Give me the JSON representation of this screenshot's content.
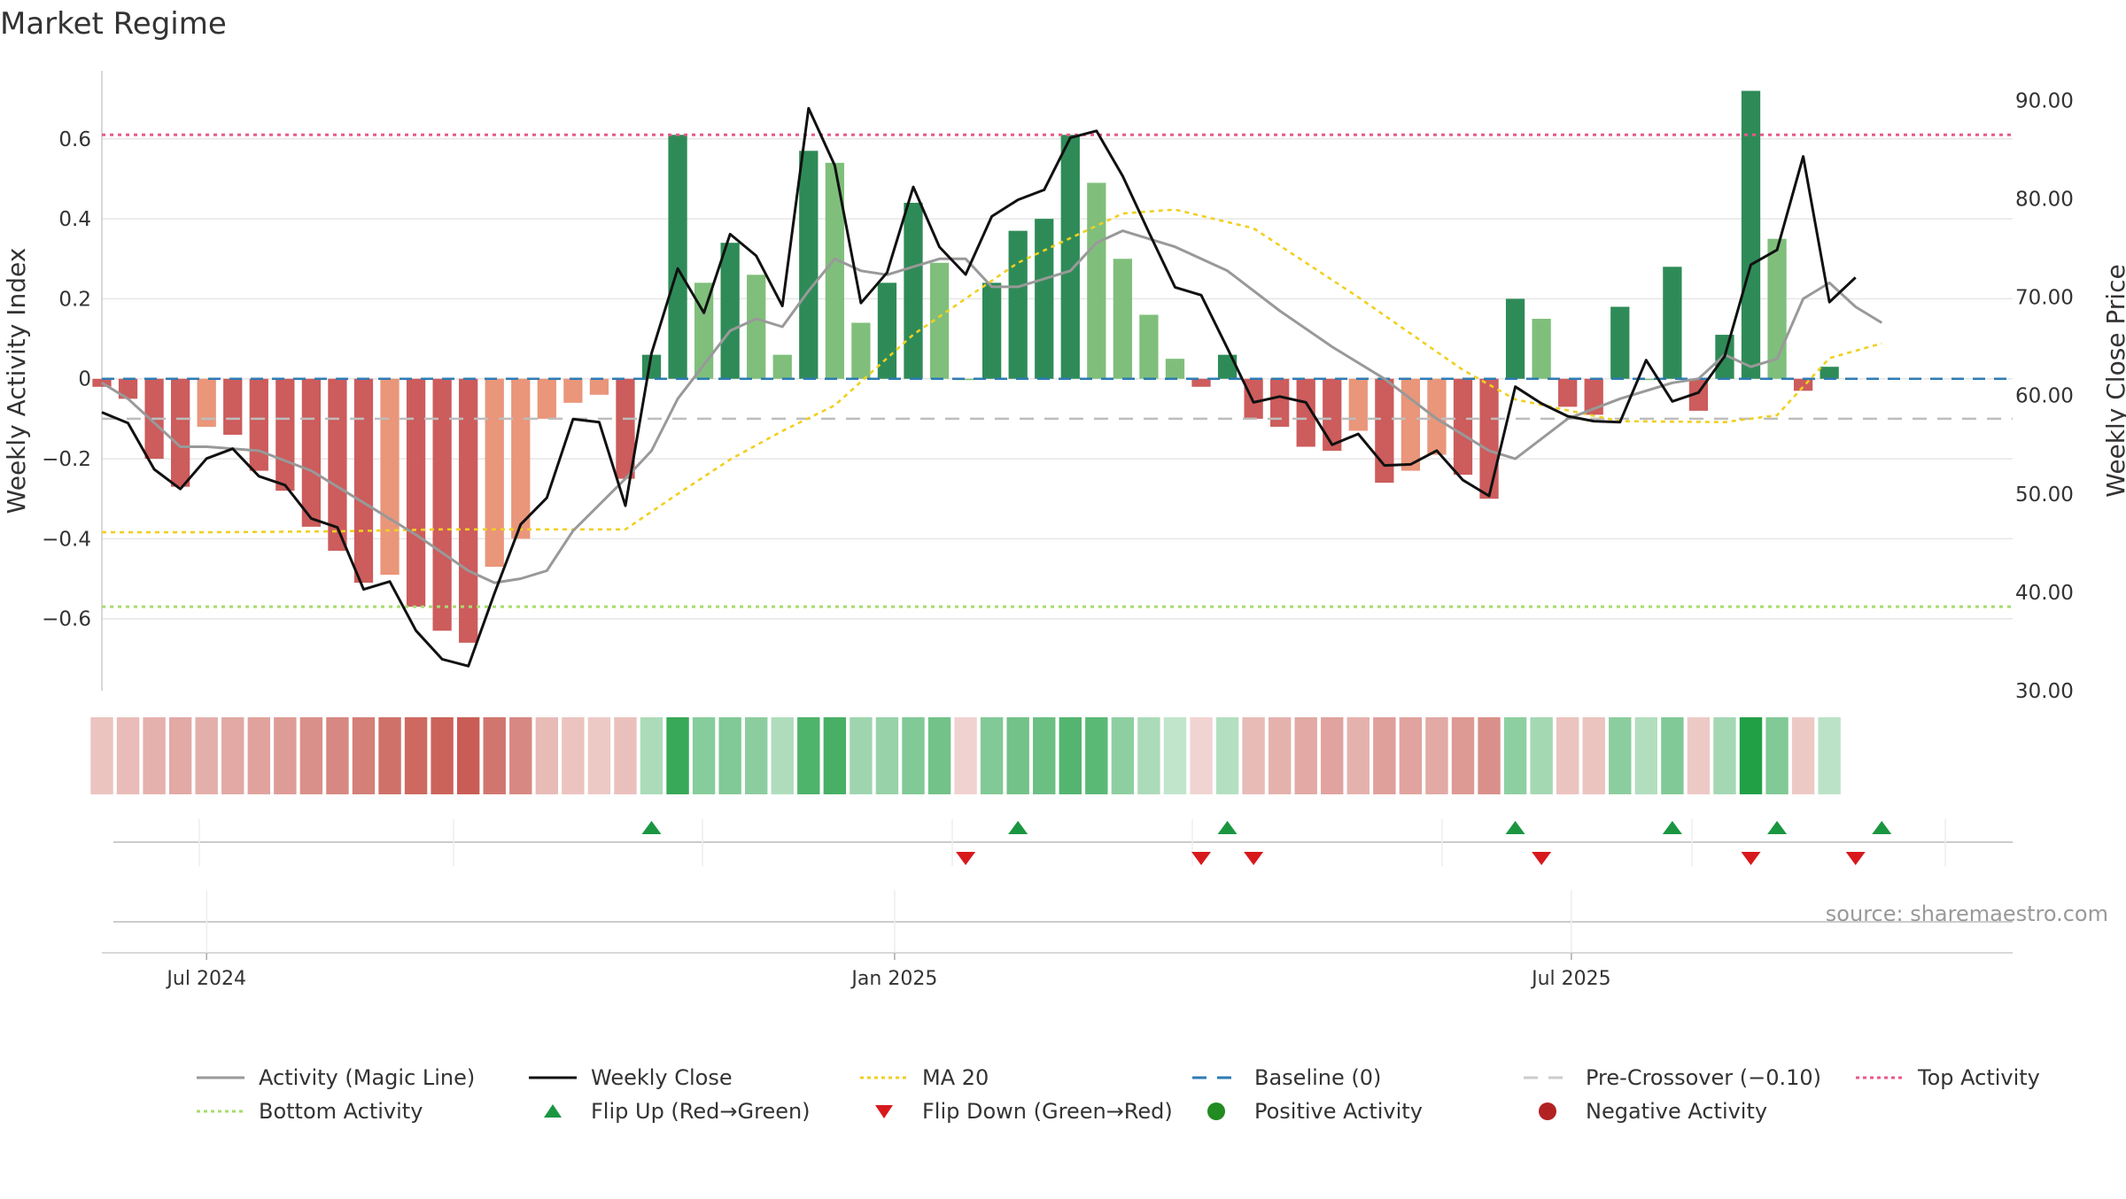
{
  "chart_data": {
    "type": "bar",
    "title": "Market Regime",
    "ylabel_left": "Weekly Activity Index",
    "ylabel_right": "Weekly Close Price",
    "ylim_left": [
      -0.78,
      0.77
    ],
    "ylim_right": [
      30,
      93
    ],
    "yticks_left": [
      -0.6,
      -0.4,
      -0.2,
      0,
      0.2,
      0.4,
      0.6
    ],
    "yticks_left_labels": [
      "−0.6",
      "−0.4",
      "−0.2",
      "0",
      "0.2",
      "0.4",
      "0.6"
    ],
    "yticks_right": [
      30,
      40,
      50,
      60,
      70,
      80,
      90
    ],
    "yticks_right_labels": [
      "30.00",
      "40.00",
      "50.00",
      "60.00",
      "70.00",
      "80.00",
      "90.00"
    ],
    "x_start": "2024-06-03",
    "x_end": "2025-10-27",
    "xticks": [
      {
        "date": "2024-07-01",
        "label": "Jul 2024"
      },
      {
        "date": "2025-01-01",
        "label": "Jan 2025"
      },
      {
        "date": "2025-07-01",
        "label": "Jul 2025"
      }
    ],
    "weeks": [
      "2024-06-03",
      "2024-06-10",
      "2024-06-17",
      "2024-06-24",
      "2024-07-01",
      "2024-07-08",
      "2024-07-15",
      "2024-07-22",
      "2024-07-29",
      "2024-08-05",
      "2024-08-12",
      "2024-08-19",
      "2024-08-26",
      "2024-09-02",
      "2024-09-09",
      "2024-09-16",
      "2024-09-23",
      "2024-09-30",
      "2024-10-07",
      "2024-10-14",
      "2024-10-21",
      "2024-10-28",
      "2024-11-04",
      "2024-11-11",
      "2024-11-18",
      "2024-11-25",
      "2024-12-02",
      "2024-12-09",
      "2024-12-16",
      "2024-12-23",
      "2024-12-30",
      "2025-01-06",
      "2025-01-13",
      "2025-01-20",
      "2025-01-27",
      "2025-02-03",
      "2025-02-10",
      "2025-02-17",
      "2025-02-24",
      "2025-03-03",
      "2025-03-10",
      "2025-03-17",
      "2025-03-24",
      "2025-03-31",
      "2025-04-07",
      "2025-04-14",
      "2025-04-21",
      "2025-04-28",
      "2025-05-05",
      "2025-05-12",
      "2025-05-19",
      "2025-05-26",
      "2025-06-02",
      "2025-06-09",
      "2025-06-16",
      "2025-06-23",
      "2025-06-30",
      "2025-07-07",
      "2025-07-14",
      "2025-07-21",
      "2025-07-28",
      "2025-08-04",
      "2025-08-11",
      "2025-08-18",
      "2025-08-25",
      "2025-09-01",
      "2025-09-08",
      "2025-09-15",
      "2025-09-22",
      "2025-09-29",
      "2025-10-06",
      "2025-10-13",
      "2025-10-20",
      "2025-10-27"
    ],
    "activity_bars": [
      -0.02,
      -0.05,
      -0.2,
      -0.27,
      -0.12,
      -0.14,
      -0.23,
      -0.28,
      -0.37,
      -0.43,
      -0.51,
      -0.49,
      -0.57,
      -0.63,
      -0.66,
      -0.47,
      -0.4,
      -0.1,
      -0.06,
      -0.04,
      -0.25,
      0.06,
      0.61,
      0.24,
      0.34,
      0.26,
      0.06,
      0.57,
      0.54,
      0.14,
      0.24,
      0.44,
      0.29,
      0.0,
      0.24,
      0.37,
      0.4,
      0.61,
      0.49,
      0.3,
      0.16,
      0.05,
      -0.02,
      0.06,
      -0.1,
      -0.12,
      -0.17,
      -0.18,
      -0.13,
      -0.26,
      -0.23,
      -0.19,
      -0.24,
      -0.3,
      0.2,
      0.15,
      -0.07,
      -0.09,
      0.18,
      0.0,
      0.28,
      -0.08,
      0.11,
      0.72,
      0.35,
      -0.03,
      0.03
    ],
    "activity_bar_dates": [
      "2024-06-03",
      "2024-06-10",
      "2024-06-17",
      "2024-06-24",
      "2024-07-01",
      "2024-07-08",
      "2024-07-15",
      "2024-07-22",
      "2024-07-29",
      "2024-08-05",
      "2024-08-12",
      "2024-08-19",
      "2024-08-26",
      "2024-09-02",
      "2024-09-09",
      "2024-09-16",
      "2024-09-23",
      "2024-09-30",
      "2024-10-07",
      "2024-10-14",
      "2024-10-21",
      "2024-10-28",
      "2024-11-04",
      "2024-11-11",
      "2024-11-18",
      "2024-11-25",
      "2024-12-02",
      "2024-12-09",
      "2024-12-16",
      "2024-12-23",
      "2024-12-30",
      "2025-01-06",
      "2025-01-13",
      "2025-01-20",
      "2025-01-27",
      "2025-02-03",
      "2025-02-10",
      "2025-02-17",
      "2025-02-24",
      "2025-03-03",
      "2025-03-10",
      "2025-03-17",
      "2025-03-24",
      "2025-03-31",
      "2025-04-07",
      "2025-04-14",
      "2025-04-21",
      "2025-04-28",
      "2025-05-05",
      "2025-05-12",
      "2025-05-19",
      "2025-05-26",
      "2025-06-02",
      "2025-06-09",
      "2025-06-16",
      "2025-06-23",
      "2025-06-30",
      "2025-07-07",
      "2025-07-14",
      "2025-07-21",
      "2025-07-28",
      "2025-08-04",
      "2025-08-11",
      "2025-08-18",
      "2025-08-25",
      "2025-09-01",
      "2025-09-08"
    ],
    "activity_line_dates": [
      "2024-06-03",
      "2024-06-10",
      "2024-06-24",
      "2024-07-01",
      "2024-07-15",
      "2024-07-29",
      "2024-08-12",
      "2024-08-26",
      "2024-09-09",
      "2024-09-16",
      "2024-09-23",
      "2024-09-30",
      "2024-10-07",
      "2024-10-21",
      "2024-10-28",
      "2024-11-04",
      "2024-11-18",
      "2024-11-25",
      "2024-12-02",
      "2024-12-09",
      "2024-12-16",
      "2024-12-23",
      "2024-12-30",
      "2025-01-13",
      "2025-01-20",
      "2025-01-27",
      "2025-02-03",
      "2025-02-17",
      "2025-02-24",
      "2025-03-03",
      "2025-03-17",
      "2025-03-31",
      "2025-04-14",
      "2025-04-28",
      "2025-05-12",
      "2025-05-26",
      "2025-06-09",
      "2025-06-16",
      "2025-06-30",
      "2025-07-14",
      "2025-07-28",
      "2025-08-04",
      "2025-08-11",
      "2025-08-18",
      "2025-08-25",
      "2025-09-01",
      "2025-09-08",
      "2025-09-15",
      "2025-09-22"
    ],
    "activity_line": [
      -0.01,
      -0.05,
      -0.17,
      -0.17,
      -0.18,
      -0.23,
      -0.31,
      -0.39,
      -0.48,
      -0.51,
      -0.5,
      -0.48,
      -0.38,
      -0.25,
      -0.18,
      -0.05,
      0.12,
      0.15,
      0.13,
      0.22,
      0.3,
      0.27,
      0.26,
      0.3,
      0.3,
      0.23,
      0.23,
      0.27,
      0.34,
      0.37,
      0.33,
      0.27,
      0.17,
      0.08,
      0.0,
      -0.1,
      -0.18,
      -0.2,
      -0.1,
      -0.05,
      -0.01,
      0.0,
      0.06,
      0.03,
      0.05,
      0.2,
      0.24,
      0.18,
      0.14
    ],
    "weekly_close_dates": [
      "2024-06-03",
      "2024-06-10",
      "2024-06-17",
      "2024-06-24",
      "2024-07-01",
      "2024-07-08",
      "2024-07-15",
      "2024-07-22",
      "2024-07-29",
      "2024-08-05",
      "2024-08-12",
      "2024-08-19",
      "2024-08-26",
      "2024-09-02",
      "2024-09-09",
      "2024-09-16",
      "2024-09-23",
      "2024-09-30",
      "2024-10-07",
      "2024-10-14",
      "2024-10-21",
      "2024-10-28",
      "2024-11-04",
      "2024-11-11",
      "2024-11-18",
      "2024-11-25",
      "2024-12-02",
      "2024-12-09",
      "2024-12-16",
      "2024-12-23",
      "2024-12-30",
      "2025-01-06",
      "2025-01-13",
      "2025-01-20",
      "2025-01-27",
      "2025-02-03",
      "2025-02-10",
      "2025-02-17",
      "2025-02-24",
      "2025-03-03",
      "2025-03-10",
      "2025-03-17",
      "2025-03-24",
      "2025-03-31",
      "2025-04-07",
      "2025-04-14",
      "2025-04-21",
      "2025-04-28",
      "2025-05-05",
      "2025-05-12",
      "2025-05-19",
      "2025-05-26",
      "2025-06-02",
      "2025-06-09",
      "2025-06-16",
      "2025-06-23",
      "2025-06-30",
      "2025-07-07",
      "2025-07-14",
      "2025-07-21",
      "2025-07-28",
      "2025-08-04",
      "2025-08-11",
      "2025-08-18",
      "2025-08-25",
      "2025-09-01",
      "2025-09-08",
      "2025-09-15",
      "2025-09-22",
      "2025-09-29",
      "2025-10-06",
      "2025-10-13",
      "2025-10-20",
      "2025-10-27"
    ],
    "weekly_close": [
      58.3,
      57.2,
      52.5,
      50.5,
      53.6,
      54.6,
      51.8,
      50.9,
      47.5,
      46.6,
      40.3,
      41.1,
      36.1,
      33.2,
      32.5,
      39.9,
      46.9,
      49.6,
      57.6,
      57.3,
      48.8,
      64.3,
      72.9,
      68.4,
      76.4,
      74.2,
      69.1,
      89.2,
      83.4,
      69.4,
      72.5,
      81.2,
      75.1,
      72.3,
      78.2,
      79.9,
      80.9,
      86.2,
      86.9,
      82.3,
      76.6,
      71.0,
      70.2,
      64.8,
      59.3,
      59.9,
      59.3,
      55.0,
      56.1,
      52.9,
      53.0,
      54.4,
      51.4,
      49.8,
      60.9,
      59.2,
      57.9,
      57.4,
      57.3,
      63.6,
      59.4,
      60.3,
      64.0,
      73.3,
      74.8,
      84.3,
      69.5,
      72.0,
      null,
      null,
      null,
      null,
      null,
      null
    ],
    "ma20_dates": [
      "2024-06-03",
      "2024-07-01",
      "2024-08-05",
      "2024-09-02",
      "2024-10-07",
      "2024-10-21",
      "2024-11-04",
      "2024-11-18",
      "2024-12-02",
      "2024-12-16",
      "2025-01-06",
      "2025-02-03",
      "2025-03-03",
      "2025-03-17",
      "2025-04-07",
      "2025-05-05",
      "2025-06-02",
      "2025-06-16",
      "2025-07-14",
      "2025-08-11",
      "2025-08-25",
      "2025-09-08",
      "2025-09-22"
    ],
    "ma20": [
      46.1,
      46.1,
      46.2,
      46.4,
      46.4,
      46.4,
      50.0,
      53.5,
      56.4,
      59.0,
      66.2,
      73.5,
      78.5,
      78.9,
      77.0,
      70.0,
      62.6,
      59.6,
      57.4,
      57.3,
      58.0,
      63.8,
      65.3
    ],
    "reference_lines": [
      {
        "name": "Baseline (0)",
        "value": 0,
        "color": "#2e7bb4"
      },
      {
        "name": "Pre-Crossover (−0.10)",
        "value": -0.1,
        "color": "#bdbdbd"
      },
      {
        "name": "Top Activity",
        "value": 0.61,
        "color": "#e8588a"
      },
      {
        "name": "Bottom Activity",
        "value": -0.57,
        "color": "#a6dc6e"
      }
    ],
    "flip_up_dates": [
      "2024-10-28",
      "2025-02-03",
      "2025-03-31",
      "2025-06-16",
      "2025-07-28",
      "2025-08-25",
      "2025-09-22"
    ],
    "flip_down_dates": [
      "2025-01-20",
      "2025-03-24",
      "2025-04-07",
      "2025-06-23",
      "2025-08-18",
      "2025-09-15"
    ],
    "heat_strip_dates": [
      "2024-06-03",
      "2024-06-10",
      "2024-06-17",
      "2024-06-24",
      "2024-07-01",
      "2024-07-08",
      "2024-07-15",
      "2024-07-22",
      "2024-07-29",
      "2024-08-05",
      "2024-08-12",
      "2024-08-19",
      "2024-08-26",
      "2024-09-02",
      "2024-09-09",
      "2024-09-16",
      "2024-09-23",
      "2024-09-30",
      "2024-10-07",
      "2024-10-14",
      "2024-10-21",
      "2024-10-28",
      "2024-11-04",
      "2024-11-11",
      "2024-11-18",
      "2024-11-25",
      "2024-12-02",
      "2024-12-09",
      "2024-12-16",
      "2024-12-23",
      "2024-12-30",
      "2025-01-06",
      "2025-01-13",
      "2025-01-20",
      "2025-01-27",
      "2025-02-03",
      "2025-02-10",
      "2025-02-17",
      "2025-02-24",
      "2025-03-03",
      "2025-03-10",
      "2025-03-17",
      "2025-03-24",
      "2025-03-31",
      "2025-04-07",
      "2025-04-14",
      "2025-04-21",
      "2025-04-28",
      "2025-05-05",
      "2025-05-12",
      "2025-05-19",
      "2025-05-26",
      "2025-06-02",
      "2025-06-09",
      "2025-06-16",
      "2025-06-23",
      "2025-06-30",
      "2025-07-07",
      "2025-07-14",
      "2025-07-21",
      "2025-07-28",
      "2025-08-04",
      "2025-08-11",
      "2025-08-18",
      "2025-08-25",
      "2025-09-01",
      "2025-09-08",
      "2025-09-15",
      "2025-09-22",
      "2025-09-29"
    ],
    "heat_strip": [
      -0.1,
      -0.12,
      -0.17,
      -0.2,
      -0.18,
      -0.2,
      -0.23,
      -0.25,
      -0.3,
      -0.33,
      -0.37,
      -0.42,
      -0.45,
      -0.48,
      -0.5,
      -0.4,
      -0.33,
      -0.13,
      -0.1,
      -0.08,
      -0.11,
      0.15,
      0.55,
      0.28,
      0.3,
      0.26,
      0.14,
      0.48,
      0.5,
      0.2,
      0.22,
      0.3,
      0.35,
      -0.04,
      0.3,
      0.35,
      0.38,
      0.46,
      0.43,
      0.25,
      0.15,
      0.08,
      -0.03,
      0.12,
      -0.13,
      -0.17,
      -0.2,
      -0.22,
      -0.17,
      -0.24,
      -0.22,
      -0.2,
      -0.26,
      -0.3,
      0.25,
      0.18,
      -0.1,
      -0.1,
      0.26,
      0.13,
      0.3,
      -0.08,
      0.18,
      0.65,
      0.3,
      -0.08,
      0.1,
      null,
      null,
      null
    ],
    "source": "source: sharemaestro.com",
    "colors": {
      "pos_strong": "#2e8b57",
      "pos_light": "#7fbf7b",
      "neg_strong": "#cd5c5c",
      "neg_light": "#e9967a",
      "activity_line": "#999999",
      "weekly_close": "#111111",
      "ma20": "#f0d020",
      "flip_up": "#1a9641",
      "flip_down": "#d7191c",
      "positive_dot": "#228b22",
      "negative_dot": "#b22222"
    },
    "legend": {
      "placement": "bottom",
      "items": [
        {
          "label": "Activity (Magic Line)",
          "marker": "line",
          "color": "#999999"
        },
        {
          "label": "Weekly Close",
          "marker": "line",
          "color": "#111111"
        },
        {
          "label": "MA 20",
          "marker": "dotted",
          "color": "#f0d020"
        },
        {
          "label": "Baseline (0)",
          "marker": "dashed",
          "color": "#2e7bb4"
        },
        {
          "label": "Pre-Crossover (−0.10)",
          "marker": "dashed",
          "color": "#cccccc"
        },
        {
          "label": "Top Activity",
          "marker": "dotted",
          "color": "#e8588a"
        },
        {
          "label": "Bottom Activity",
          "marker": "dotted",
          "color": "#a6dc6e"
        },
        {
          "label": "Flip Up (Red→Green)",
          "marker": "triangle-up",
          "color": "#1a9641"
        },
        {
          "label": "Flip Down (Green→Red)",
          "marker": "triangle-down",
          "color": "#d7191c"
        },
        {
          "label": "Positive Activity",
          "marker": "circle",
          "color": "#228b22"
        },
        {
          "label": "Negative Activity",
          "marker": "circle",
          "color": "#b22222"
        }
      ]
    }
  }
}
